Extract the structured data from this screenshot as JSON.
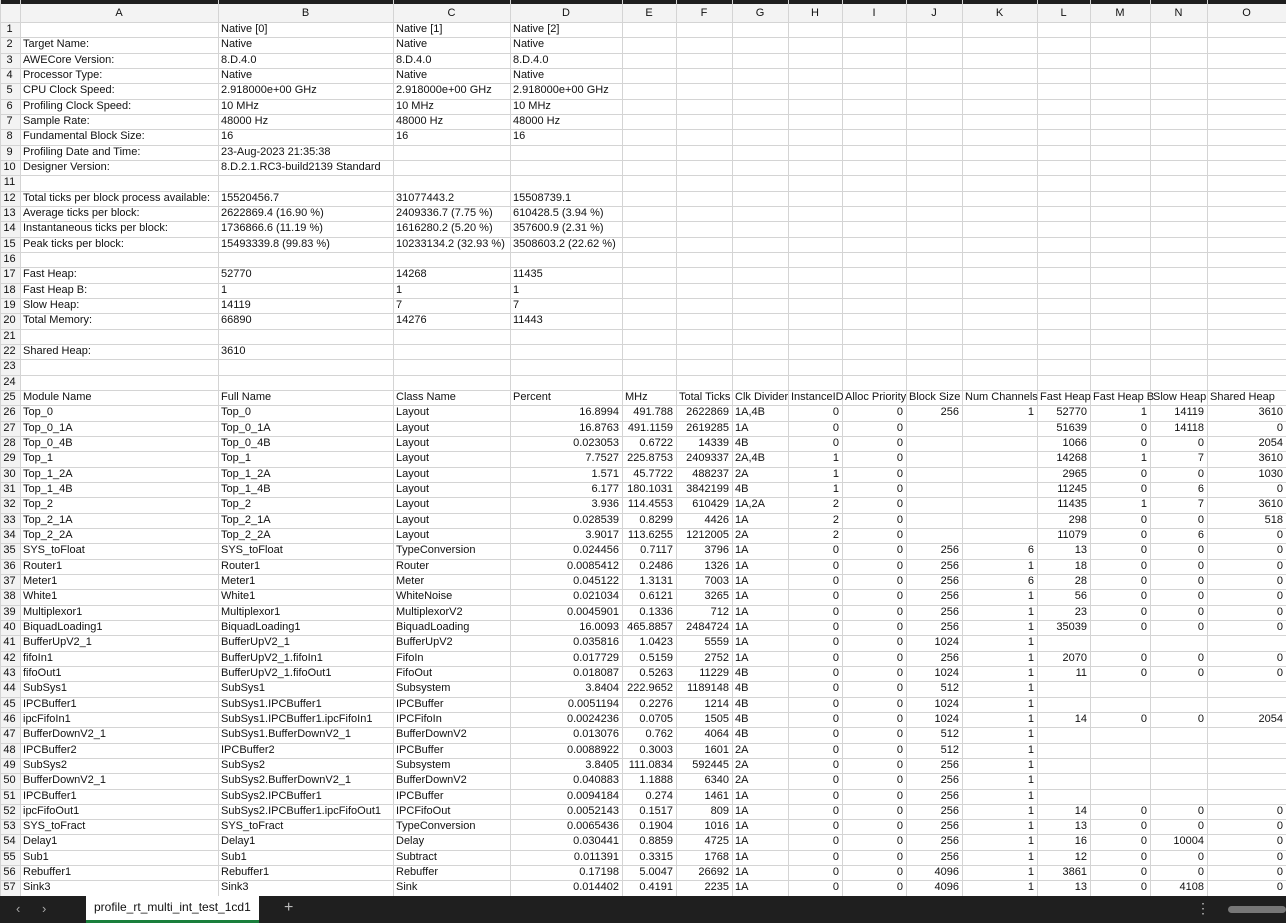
{
  "sheet": {
    "column_letters": [
      "A",
      "B",
      "C",
      "D",
      "E",
      "F",
      "G",
      "H",
      "I",
      "J",
      "K",
      "L",
      "M",
      "N",
      "O"
    ],
    "rows": [
      {
        "n": 1,
        "cells": [
          null,
          "Native [0]",
          "Native [1]",
          "Native [2]"
        ]
      },
      {
        "n": 2,
        "cells": [
          "Target Name:",
          "Native",
          "Native",
          "Native"
        ]
      },
      {
        "n": 3,
        "cells": [
          "AWECore Version:",
          "8.D.4.0",
          "8.D.4.0",
          "8.D.4.0"
        ]
      },
      {
        "n": 4,
        "cells": [
          "Processor Type:",
          "Native",
          "Native",
          "Native"
        ]
      },
      {
        "n": 5,
        "cells": [
          "CPU Clock Speed:",
          "2.918000e+00 GHz",
          "2.918000e+00 GHz",
          "2.918000e+00 GHz"
        ]
      },
      {
        "n": 6,
        "cells": [
          "Profiling Clock Speed:",
          "10 MHz",
          "10 MHz",
          "10 MHz"
        ]
      },
      {
        "n": 7,
        "cells": [
          "Sample Rate:",
          "48000 Hz",
          "48000 Hz",
          "48000 Hz"
        ]
      },
      {
        "n": 8,
        "cells": [
          "Fundamental Block Size:",
          "16",
          "16",
          "16"
        ]
      },
      {
        "n": 9,
        "cells": [
          "Profiling Date and Time:",
          "23-Aug-2023 21:35:38"
        ]
      },
      {
        "n": 10,
        "cells": [
          "Designer Version:",
          "8.D.2.1.RC3-build2139 Standard"
        ]
      },
      {
        "n": 11,
        "cells": []
      },
      {
        "n": 12,
        "cells": [
          "Total ticks per block process available:",
          "15520456.7",
          "31077443.2",
          "15508739.1"
        ]
      },
      {
        "n": 13,
        "cells": [
          "Average ticks per block:",
          "2622869.4  (16.90 %)",
          "2409336.7  (7.75 %)",
          "610428.5  (3.94 %)"
        ]
      },
      {
        "n": 14,
        "cells": [
          "Instantaneous ticks per block:",
          "1736866.6  (11.19 %)",
          "1616280.2  (5.20 %)",
          "357600.9  (2.31 %)"
        ]
      },
      {
        "n": 15,
        "cells": [
          "Peak ticks per block:",
          "15493339.8  (99.83 %)",
          "10233134.2  (32.93 %)",
          "3508603.2  (22.62 %)"
        ]
      },
      {
        "n": 16,
        "cells": []
      },
      {
        "n": 17,
        "cells": [
          "Fast Heap:",
          "52770",
          "14268",
          "11435"
        ]
      },
      {
        "n": 18,
        "cells": [
          "Fast Heap B:",
          "1",
          "1",
          "1"
        ]
      },
      {
        "n": 19,
        "cells": [
          "Slow Heap:",
          "14119",
          "7",
          "7"
        ]
      },
      {
        "n": 20,
        "cells": [
          "Total Memory:",
          "66890",
          "14276",
          "11443"
        ]
      },
      {
        "n": 21,
        "cells": []
      },
      {
        "n": 22,
        "cells": [
          "Shared Heap:",
          "3610"
        ]
      },
      {
        "n": 23,
        "cells": []
      },
      {
        "n": 24,
        "cells": []
      },
      {
        "n": 25,
        "cells": [
          "Module Name",
          "Full Name",
          "Class Name",
          "Percent",
          "MHz",
          "Total Ticks",
          "Clk Divider",
          "InstanceID",
          "Alloc Priority",
          "Block Size",
          "Num Channels",
          "Fast Heap",
          "Fast Heap B",
          "Slow Heap",
          "Shared Heap"
        ]
      },
      {
        "n": 26,
        "cells": [
          "Top_0",
          "Top_0",
          "Layout",
          16.8994,
          491.788,
          2622869,
          "1A,4B",
          0,
          0,
          256,
          1,
          52770,
          1,
          14119,
          3610
        ]
      },
      {
        "n": 27,
        "cells": [
          "Top_0_1A",
          "Top_0_1A",
          "Layout",
          16.8763,
          491.1159,
          2619285,
          "1A",
          0,
          0,
          null,
          null,
          51639,
          0,
          14118,
          0
        ]
      },
      {
        "n": 28,
        "cells": [
          "Top_0_4B",
          "Top_0_4B",
          "Layout",
          0.023053,
          0.6722,
          14339,
          "4B",
          0,
          0,
          null,
          null,
          1066,
          0,
          0,
          2054
        ]
      },
      {
        "n": 29,
        "cells": [
          "Top_1",
          "Top_1",
          "Layout",
          7.7527,
          225.8753,
          2409337,
          "2A,4B",
          1,
          0,
          null,
          null,
          14268,
          1,
          7,
          3610
        ]
      },
      {
        "n": 30,
        "cells": [
          "Top_1_2A",
          "Top_1_2A",
          "Layout",
          1.571,
          45.7722,
          488237,
          "2A",
          1,
          0,
          null,
          null,
          2965,
          0,
          0,
          1030
        ]
      },
      {
        "n": 31,
        "cells": [
          "Top_1_4B",
          "Top_1_4B",
          "Layout",
          6.177,
          180.1031,
          3842199,
          "4B",
          1,
          0,
          null,
          null,
          11245,
          0,
          6,
          0
        ]
      },
      {
        "n": 32,
        "cells": [
          "Top_2",
          "Top_2",
          "Layout",
          3.936,
          114.4553,
          610429,
          "1A,2A",
          2,
          0,
          null,
          null,
          11435,
          1,
          7,
          3610
        ]
      },
      {
        "n": 33,
        "cells": [
          "Top_2_1A",
          "Top_2_1A",
          "Layout",
          0.028539,
          0.8299,
          4426,
          "1A",
          2,
          0,
          null,
          null,
          298,
          0,
          0,
          518
        ]
      },
      {
        "n": 34,
        "cells": [
          "Top_2_2A",
          "Top_2_2A",
          "Layout",
          3.9017,
          113.6255,
          1212005,
          "2A",
          2,
          0,
          null,
          null,
          11079,
          0,
          6,
          0
        ]
      },
      {
        "n": 35,
        "cells": [
          "SYS_toFloat",
          "SYS_toFloat",
          "TypeConversion",
          0.024456,
          0.7117,
          3796,
          "1A",
          0,
          0,
          256,
          6,
          13,
          0,
          0,
          0
        ]
      },
      {
        "n": 36,
        "cells": [
          "Router1",
          "Router1",
          "Router",
          0.0085412,
          0.2486,
          1326,
          "1A",
          0,
          0,
          256,
          1,
          18,
          0,
          0,
          0
        ]
      },
      {
        "n": 37,
        "cells": [
          "Meter1",
          "Meter1",
          "Meter",
          0.045122,
          1.3131,
          7003,
          "1A",
          0,
          0,
          256,
          6,
          28,
          0,
          0,
          0
        ]
      },
      {
        "n": 38,
        "cells": [
          "White1",
          "White1",
          "WhiteNoise",
          0.021034,
          0.6121,
          3265,
          "1A",
          0,
          0,
          256,
          1,
          56,
          0,
          0,
          0
        ]
      },
      {
        "n": 39,
        "cells": [
          "Multiplexor1",
          "Multiplexor1",
          "MultiplexorV2",
          0.0045901,
          0.1336,
          712,
          "1A",
          0,
          0,
          256,
          1,
          23,
          0,
          0,
          0
        ]
      },
      {
        "n": 40,
        "cells": [
          "BiquadLoading1",
          "BiquadLoading1",
          "BiquadLoading",
          16.0093,
          465.8857,
          2484724,
          "1A",
          0,
          0,
          256,
          1,
          35039,
          0,
          0,
          0
        ]
      },
      {
        "n": 41,
        "cells": [
          "BufferUpV2_1",
          "BufferUpV2_1",
          "BufferUpV2",
          0.035816,
          1.0423,
          5559,
          "1A",
          0,
          0,
          1024,
          1
        ]
      },
      {
        "n": 42,
        "cells": [
          "fifoIn1",
          "BufferUpV2_1.fifoIn1",
          "FifoIn",
          0.017729,
          0.5159,
          2752,
          "1A",
          0,
          0,
          256,
          1,
          2070,
          0,
          0,
          0
        ]
      },
      {
        "n": 43,
        "cells": [
          "fifoOut1",
          "BufferUpV2_1.fifoOut1",
          "FifoOut",
          0.018087,
          0.5263,
          11229,
          "4B",
          0,
          0,
          1024,
          1,
          11,
          0,
          0,
          0
        ]
      },
      {
        "n": 44,
        "cells": [
          "SubSys1",
          "SubSys1",
          "Subsystem",
          3.8404,
          222.9652,
          1189148,
          "4B",
          0,
          0,
          512,
          1
        ]
      },
      {
        "n": 45,
        "cells": [
          "IPCBuffer1",
          "SubSys1.IPCBuffer1",
          "IPCBuffer",
          0.0051194,
          0.2276,
          1214,
          "4B",
          0,
          0,
          1024,
          1
        ]
      },
      {
        "n": 46,
        "cells": [
          "ipcFifoIn1",
          "SubSys1.IPCBuffer1.ipcFifoIn1",
          "IPCFifoIn",
          0.0024236,
          0.0705,
          1505,
          "4B",
          0,
          0,
          1024,
          1,
          14,
          0,
          0,
          2054
        ]
      },
      {
        "n": 47,
        "cells": [
          "BufferDownV2_1",
          "SubSys1.BufferDownV2_1",
          "BufferDownV2",
          0.013076,
          0.762,
          4064,
          "4B",
          0,
          0,
          512,
          1
        ]
      },
      {
        "n": 48,
        "cells": [
          "IPCBuffer2",
          "IPCBuffer2",
          "IPCBuffer",
          0.0088922,
          0.3003,
          1601,
          "2A",
          0,
          0,
          512,
          1
        ]
      },
      {
        "n": 49,
        "cells": [
          "SubSys2",
          "SubSys2",
          "Subsystem",
          3.8405,
          111.0834,
          592445,
          "2A",
          0,
          0,
          256,
          1
        ]
      },
      {
        "n": 50,
        "cells": [
          "BufferDownV2_1",
          "SubSys2.BufferDownV2_1",
          "BufferDownV2",
          0.040883,
          1.1888,
          6340,
          "2A",
          0,
          0,
          256,
          1
        ]
      },
      {
        "n": 51,
        "cells": [
          "IPCBuffer1",
          "SubSys2.IPCBuffer1",
          "IPCBuffer",
          0.0094184,
          0.274,
          1461,
          "1A",
          0,
          0,
          256,
          1
        ]
      },
      {
        "n": 52,
        "cells": [
          "ipcFifoOut1",
          "SubSys2.IPCBuffer1.ipcFifoOut1",
          "IPCFifoOut",
          0.0052143,
          0.1517,
          809,
          "1A",
          0,
          0,
          256,
          1,
          14,
          0,
          0,
          0
        ]
      },
      {
        "n": 53,
        "cells": [
          "SYS_toFract",
          "SYS_toFract",
          "TypeConversion",
          0.0065436,
          0.1904,
          1016,
          "1A",
          0,
          0,
          256,
          1,
          13,
          0,
          0,
          0
        ]
      },
      {
        "n": 54,
        "cells": [
          "Delay1",
          "Delay1",
          "Delay",
          0.030441,
          0.8859,
          4725,
          "1A",
          0,
          0,
          256,
          1,
          16,
          0,
          10004,
          0
        ]
      },
      {
        "n": 55,
        "cells": [
          "Sub1",
          "Sub1",
          "Subtract",
          0.011391,
          0.3315,
          1768,
          "1A",
          0,
          0,
          256,
          1,
          12,
          0,
          0,
          0
        ]
      },
      {
        "n": 56,
        "cells": [
          "Rebuffer1",
          "Rebuffer1",
          "Rebuffer",
          0.17198,
          5.0047,
          26692,
          "1A",
          0,
          0,
          4096,
          1,
          3861,
          0,
          0,
          0
        ]
      },
      {
        "n": 57,
        "cells": [
          "Sink3",
          "Sink3",
          "Sink",
          0.014402,
          0.4191,
          2235,
          "1A",
          0,
          0,
          4096,
          1,
          13,
          0,
          4108,
          0
        ]
      }
    ]
  },
  "sheet_tabs": [
    "profile_rt_multi_int_test_1cd1"
  ]
}
